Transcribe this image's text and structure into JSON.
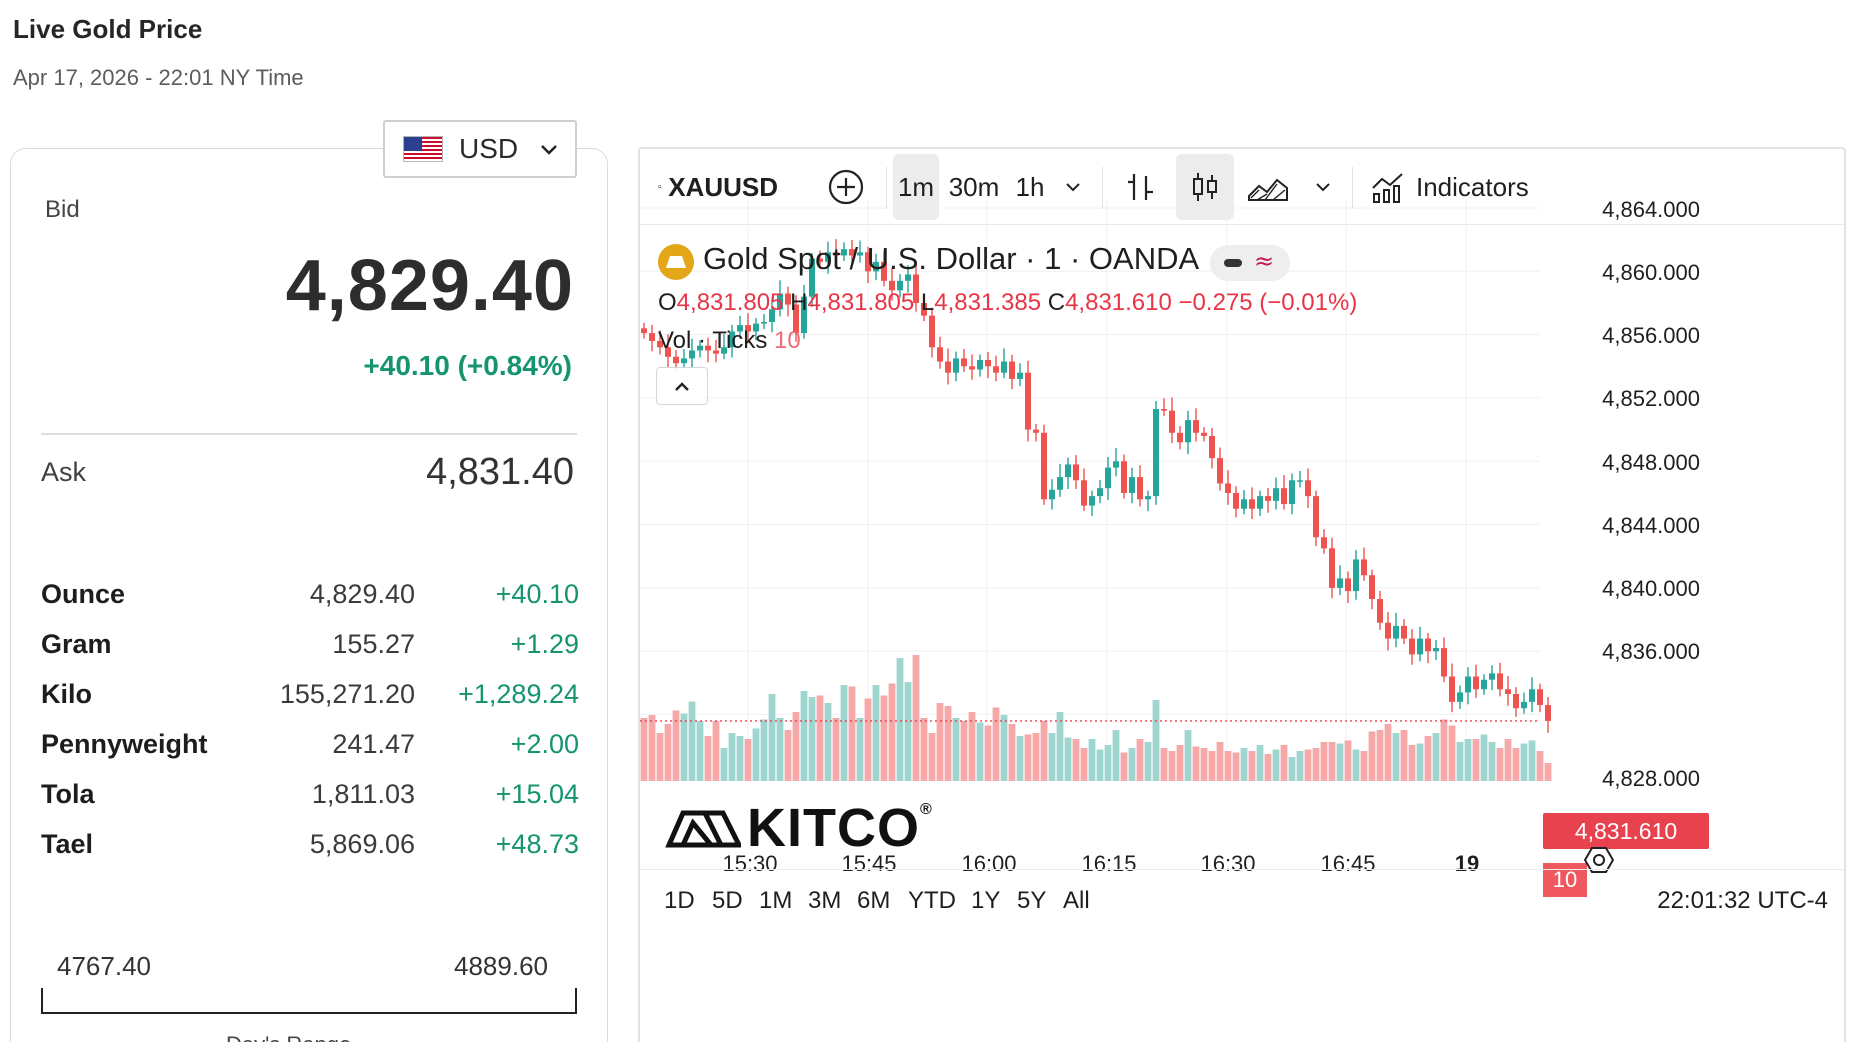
{
  "header": {
    "title": "Live Gold Price",
    "subtitle": "Apr 17, 2026 - 22:01 NY Time"
  },
  "currency": {
    "selected": "USD",
    "flag": "us-flag-icon"
  },
  "quote": {
    "bid_label": "Bid",
    "bid": "4,829.40",
    "change": "+40.10 (+0.84%)",
    "ask_label": "Ask",
    "ask": "4,831.40"
  },
  "weights": [
    {
      "unit": "Ounce",
      "price": "4,829.40",
      "change": "+40.10"
    },
    {
      "unit": "Gram",
      "price": "155.27",
      "change": "+1.29"
    },
    {
      "unit": "Kilo",
      "price": "155,271.20",
      "change": "+1,289.24"
    },
    {
      "unit": "Pennyweight",
      "price": "241.47",
      "change": "+2.00"
    },
    {
      "unit": "Tola",
      "price": "1,811.03",
      "change": "+15.04"
    },
    {
      "unit": "Tael",
      "price": "5,869.06",
      "change": "+48.73"
    }
  ],
  "day_range": {
    "low": "4767.40",
    "high": "4889.60",
    "caption": "Day's Range"
  },
  "toolbar": {
    "symbol": "XAUUSD",
    "intervals": [
      "1m",
      "30m",
      "1h"
    ],
    "active_interval": "1m",
    "indicators_label": "Indicators"
  },
  "legend": {
    "title": "Gold Spot / U.S. Dollar · 1 · OANDA",
    "o_label": "O",
    "o": "4,831.805",
    "h_label": "H",
    "h": "4,831.805",
    "l_label": "L",
    "l": "4,831.385",
    "c_label": "C",
    "c": "4,831.610",
    "change": "−0.275 (−0.01%)",
    "vol_label": "Vol · Ticks",
    "vol": "10"
  },
  "watermark": "KITCO",
  "colors": {
    "up": "#26a69a",
    "down": "#ef5350",
    "vol_up": "#9fd6cf",
    "vol_down": "#f6a7a8",
    "positive_text": "#14946f"
  },
  "chart_data": {
    "type": "candlestick",
    "title": "Gold Spot / U.S. Dollar · 1 · OANDA",
    "y_axis_ticks": [
      "4,864.000",
      "4,860.000",
      "4,856.000",
      "4,852.000",
      "4,848.000",
      "4,844.000",
      "4,840.000",
      "4,836.000",
      "4,828.000"
    ],
    "x_axis_ticks": [
      "15:30",
      "15:45",
      "16:00",
      "16:15",
      "16:30",
      "16:45",
      "19"
    ],
    "ylim": [
      4826.0,
      4864.0
    ],
    "last_price": "4,831.610",
    "last_volume": "10",
    "start_time": "15:22",
    "interval_minutes": 1,
    "candles_close": [
      4856.1,
      4855.6,
      4855.2,
      4854.6,
      4854.2,
      4854.5,
      4855.0,
      4855.3,
      4855.0,
      4854.8,
      4855.2,
      4856.2,
      4856.6,
      4856.2,
      4856.7,
      4856.8,
      4857.6,
      4858.6,
      4857.9,
      4856.1,
      4858.4,
      4860.8,
      4860.6,
      4861.2,
      4861.0,
      4861.4,
      4861.0,
      4861.2,
      4860.0,
      4860.6,
      4859.4,
      4858.8,
      4859.4,
      4859.8,
      4858.0,
      4857.2,
      4855.2,
      4854.3,
      4853.6,
      4854.5,
      4854.0,
      4853.8,
      4854.4,
      4854.0,
      4853.6,
      4854.3,
      4853.2,
      4853.6,
      4850.0,
      4849.8,
      4845.6,
      4846.2,
      4847.0,
      4847.8,
      4846.8,
      4845.2,
      4845.8,
      4846.3,
      4847.6,
      4848.0,
      4846.0,
      4847.0,
      4845.6,
      4845.8,
      4851.3,
      4851.2,
      4849.8,
      4849.2,
      4850.6,
      4849.8,
      4849.6,
      4848.2,
      4846.6,
      4846.0,
      4845.0,
      4845.6,
      4845.0,
      4845.8,
      4845.5,
      4846.3,
      4845.3,
      4846.8,
      4846.8,
      4845.8,
      4843.2,
      4842.5,
      4840.0,
      4840.6,
      4839.8,
      4841.8,
      4840.8,
      4839.3,
      4837.8,
      4836.8,
      4837.6,
      4836.8,
      4835.8,
      4836.8,
      4836.0,
      4836.2,
      4834.4,
      4832.8,
      4833.4,
      4834.4,
      4833.6,
      4834.2,
      4834.6,
      4833.6,
      4833.3,
      4832.4,
      4832.8,
      4833.6,
      4832.6,
      4831.6
    ],
    "volumes_relative": [
      0.42,
      0.44,
      0.32,
      0.38,
      0.47,
      0.45,
      0.53,
      0.4,
      0.3,
      0.4,
      0.22,
      0.32,
      0.3,
      0.28,
      0.35,
      0.41,
      0.58,
      0.42,
      0.34,
      0.46,
      0.6,
      0.56,
      0.57,
      0.52,
      0.42,
      0.64,
      0.63,
      0.42,
      0.55,
      0.64,
      0.57,
      0.65,
      0.82,
      0.66,
      0.84,
      0.42,
      0.32,
      0.52,
      0.5,
      0.42,
      0.4,
      0.46,
      0.39,
      0.37,
      0.49,
      0.44,
      0.38,
      0.3,
      0.31,
      0.32,
      0.4,
      0.32,
      0.46,
      0.29,
      0.28,
      0.22,
      0.28,
      0.21,
      0.24,
      0.34,
      0.19,
      0.22,
      0.28,
      0.26,
      0.54,
      0.22,
      0.2,
      0.24,
      0.34,
      0.23,
      0.22,
      0.2,
      0.26,
      0.2,
      0.19,
      0.22,
      0.2,
      0.24,
      0.18,
      0.21,
      0.24,
      0.16,
      0.2,
      0.21,
      0.22,
      0.26,
      0.26,
      0.25,
      0.27,
      0.21,
      0.2,
      0.33,
      0.34,
      0.38,
      0.32,
      0.34,
      0.24,
      0.25,
      0.3,
      0.32,
      0.41,
      0.37,
      0.26,
      0.28,
      0.28,
      0.31,
      0.26,
      0.22,
      0.28,
      0.22,
      0.25,
      0.27,
      0.2,
      0.12
    ],
    "ranges": [
      "1D",
      "5D",
      "1M",
      "3M",
      "6M",
      "YTD",
      "1Y",
      "5Y",
      "All"
    ],
    "clock": "22:01:32 UTC-4"
  }
}
